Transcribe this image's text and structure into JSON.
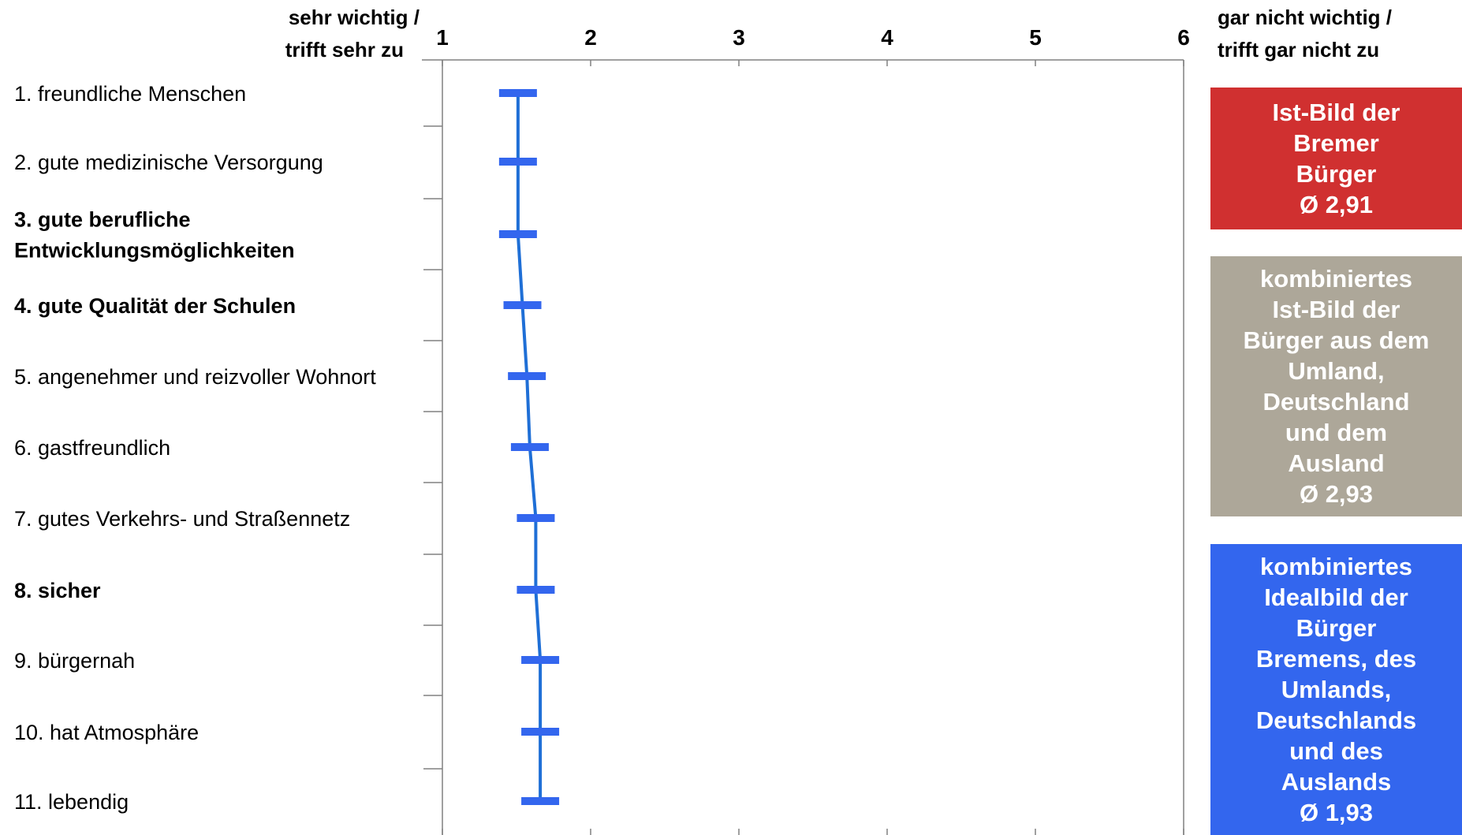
{
  "chart_data": {
    "type": "line",
    "orientation": "vertical-profile",
    "x_axis": {
      "ticks": [
        1,
        2,
        3,
        4,
        5,
        6
      ],
      "range": [
        1,
        6
      ],
      "left_label_line1": "sehr wichtig /",
      "left_label_line2": "trifft sehr zu",
      "right_label_line1": "gar nicht wichtig /",
      "right_label_line2": "trifft gar nicht zu"
    },
    "categories": [
      {
        "lines": [
          "1. freundliche Menschen"
        ],
        "bold": false
      },
      {
        "lines": [
          "2. gute medizinische Versorgung"
        ],
        "bold": false
      },
      {
        "lines": [
          "3. gute berufliche",
          "Entwicklungsmöglichkeiten"
        ],
        "bold": true
      },
      {
        "lines": [
          "4. gute Qualität der Schulen"
        ],
        "bold": true
      },
      {
        "lines": [
          "5. angenehmer und reizvoller Wohnort"
        ],
        "bold": false
      },
      {
        "lines": [
          "6. gastfreundlich"
        ],
        "bold": false
      },
      {
        "lines": [
          "7. gutes Verkehrs- und Straßennetz"
        ],
        "bold": false
      },
      {
        "lines": [
          "8. sicher"
        ],
        "bold": true
      },
      {
        "lines": [
          "9. bürgernah"
        ],
        "bold": false
      },
      {
        "lines": [
          "10. hat Atmosphäre"
        ],
        "bold": false
      },
      {
        "lines": [
          "11. lebendig"
        ],
        "bold": false
      }
    ],
    "series": [
      {
        "name": "kombiniertes Idealbild der Bürger Bremens, des Umlands, Deutschlands und des Auslands",
        "color": "#1f6fd6",
        "marker_color": "#3366ee",
        "values": [
          1.51,
          1.51,
          1.51,
          1.54,
          1.57,
          1.59,
          1.63,
          1.63,
          1.66,
          1.66,
          1.66
        ]
      }
    ],
    "legend": [
      {
        "lines": [
          "Ist-Bild der",
          "Bremer",
          "Bürger",
          "Ø 2,91"
        ],
        "color": "#d03030"
      },
      {
        "lines": [
          "kombiniertes",
          "Ist-Bild der",
          "Bürger aus dem",
          "Umland,",
          "Deutschland",
          "und dem",
          "Ausland",
          "Ø 2,93"
        ],
        "color": "#ada799"
      },
      {
        "lines": [
          "kombiniertes",
          "Idealbild der",
          "Bürger",
          "Bremens, des",
          "Umlands,",
          "Deutschlands",
          "und des",
          "Auslands",
          "Ø 1,93"
        ],
        "color": "#3366ee"
      }
    ],
    "legend_placement": "right",
    "grid": false
  }
}
